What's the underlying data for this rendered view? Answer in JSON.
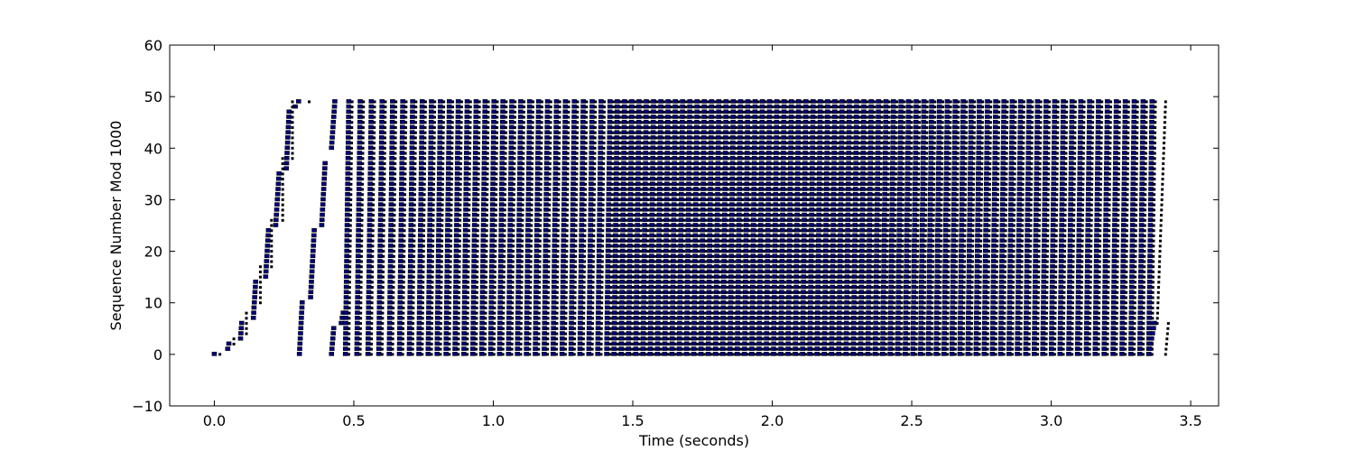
{
  "chart_data": {
    "type": "scatter",
    "title": "",
    "xlabel": "Time (seconds)",
    "ylabel": "Sequence Number Mod 1000",
    "xlim": [
      -0.16,
      3.6
    ],
    "ylim": [
      -10,
      60
    ],
    "xticks": [
      0.0,
      0.5,
      1.0,
      1.5,
      2.0,
      2.5,
      3.0,
      3.5
    ],
    "xtick_labels": [
      "0.0",
      "0.5",
      "1.0",
      "1.5",
      "2.0",
      "2.5",
      "3.0",
      "3.5"
    ],
    "yticks": [
      -10,
      0,
      10,
      20,
      30,
      40,
      50,
      60
    ],
    "ytick_labels": [
      "−10",
      "0",
      "10",
      "20",
      "30",
      "40",
      "50",
      "60"
    ],
    "grid": false,
    "legend": "none",
    "colors": {
      "data_marker": "#000080",
      "ack_marker": "#000000"
    },
    "series": [
      {
        "marker": "square",
        "color": "#000080",
        "description_note": "sent segments",
        "segments": [
          [
            0.0,
            0.008,
            0,
            0
          ],
          [
            0.048,
            0.052,
            1,
            2
          ],
          [
            0.094,
            0.098,
            3,
            6
          ],
          [
            0.14,
            0.148,
            7,
            14
          ],
          [
            0.184,
            0.194,
            15,
            24
          ],
          [
            0.22,
            0.232,
            25,
            35
          ],
          [
            0.258,
            0.268,
            36,
            47
          ],
          [
            0.29,
            0.302,
            48,
            49
          ],
          [
            0.305,
            0.315,
            0,
            10
          ],
          [
            0.345,
            0.358,
            11,
            24
          ],
          [
            0.385,
            0.397,
            25,
            37
          ],
          [
            0.42,
            0.428,
            0,
            5
          ],
          [
            0.42,
            0.432,
            40,
            49
          ],
          [
            0.455,
            0.462,
            6,
            8
          ]
        ]
      },
      {
        "marker": "dot",
        "color": "#000000",
        "description_note": "acks",
        "segments": [
          [
            0.02,
            0.02,
            0,
            0
          ],
          [
            0.07,
            0.07,
            2,
            3
          ],
          [
            0.115,
            0.115,
            4,
            8
          ],
          [
            0.165,
            0.165,
            10,
            17
          ],
          [
            0.205,
            0.205,
            17,
            26
          ],
          [
            0.245,
            0.245,
            26,
            38
          ],
          [
            0.28,
            0.28,
            38,
            49
          ],
          [
            0.34,
            0.34,
            49,
            49
          ]
        ]
      }
    ],
    "repeating_bands": {
      "start_x": 0.3,
      "end_x": 3.42,
      "y_min": 0,
      "y_max": 49
    }
  }
}
